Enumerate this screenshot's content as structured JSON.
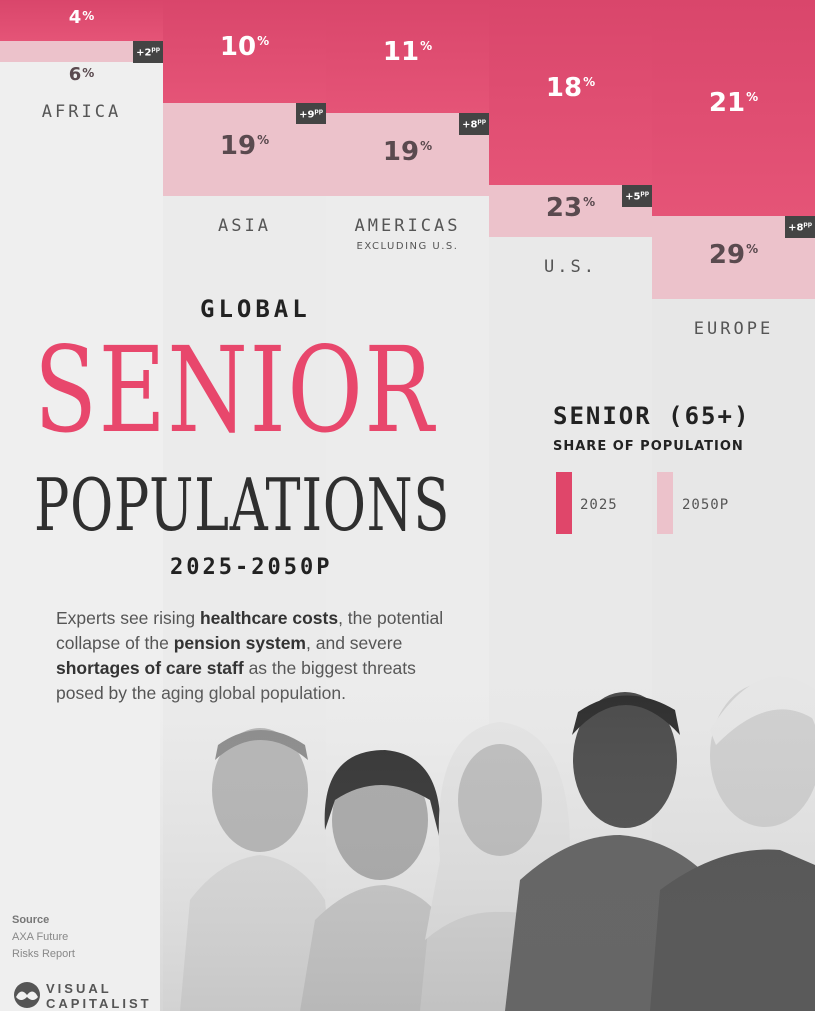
{
  "title": {
    "line1": "GLOBAL",
    "line2": "SENIOR",
    "line3": "POPULATIONS",
    "years": "2025-2050P"
  },
  "description": {
    "t1": "Experts see rising ",
    "b1": "healthcare costs",
    "t2": ", the potential collapse of the ",
    "b2": "pension system",
    "t3": ", and severe ",
    "b3": "shortages of care staff",
    "t4": " as the biggest threats posed by the aging global population."
  },
  "legend": {
    "title": "SENIOR (65+)",
    "subtitle": "SHARE OF POPULATION",
    "label_2025": "2025",
    "label_2050": "2050P",
    "color_2025": "#e0466a",
    "color_2050": "#ecc2cb"
  },
  "source": {
    "label": "Source",
    "line1": "AXA Future",
    "line2": "Risks Report"
  },
  "brand": {
    "line1": "VISUAL",
    "line2": "CAPITALIST"
  },
  "chart_data": {
    "type": "bar",
    "categories": [
      "AFRICA",
      "ASIA",
      "AMERICAS",
      "U.S.",
      "EUROPE"
    ],
    "subcategories": [
      "",
      "",
      "EXCLUDING U.S.",
      "",
      ""
    ],
    "unit": "%",
    "series": [
      {
        "name": "2025",
        "values": [
          4,
          10,
          11,
          18,
          21
        ]
      },
      {
        "name": "2050P",
        "values": [
          6,
          19,
          19,
          23,
          29
        ]
      }
    ],
    "change_labels": [
      "+2pp",
      "+9pp",
      "+8pp",
      "+5pp",
      "+8pp"
    ],
    "change_values": [
      "+2",
      "+9",
      "+8",
      "+5",
      "+8"
    ],
    "change_unit": "pp"
  }
}
